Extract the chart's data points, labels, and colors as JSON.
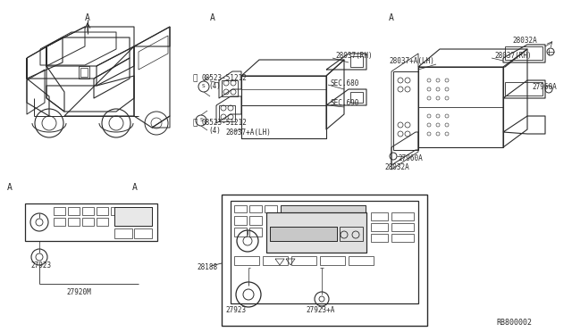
{
  "bg_color": "#ffffff",
  "line_color": "#2a2a2a",
  "diagram_id": "RB800002",
  "labels": {
    "part_28037RH_1": "28037(RH)",
    "part_08523_1": "08523-51212",
    "part_08523_1_qty": "(4)",
    "part_SEC680": "SEC.680",
    "part_SEC690": "SEC.690",
    "part_28037A_LH": "28037+A(LH)",
    "part_08523_2": "08523-51212",
    "part_08523_2_qty": "(4)",
    "part_28032A_1": "28032A",
    "part_28037RH_2": "28037(RH)",
    "part_28037A_LH2": "28037+A(LH)",
    "part_27960A_1": "27960A",
    "part_27960A_2": "27960A",
    "part_28032A_2": "28032A",
    "part_27923_1": "27923",
    "part_27920M": "27920M",
    "part_28188": "28188",
    "part_27923_2": "27923",
    "part_27923A": "27923+A"
  }
}
